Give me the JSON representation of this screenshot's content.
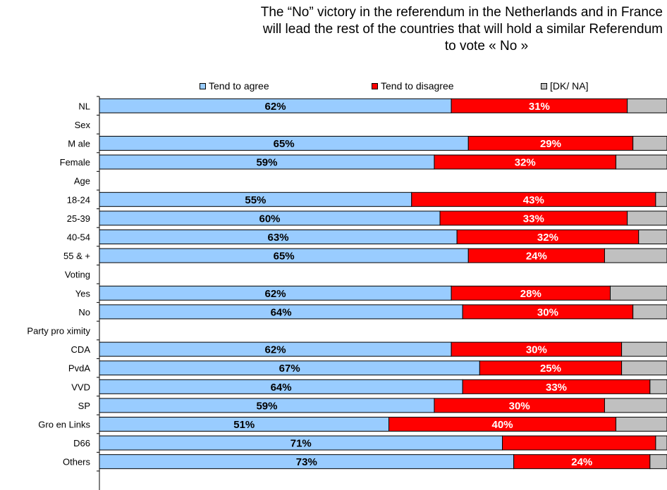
{
  "title": {
    "line1": "The “No” victory in the referendum in the Netherlands and in France",
    "line2": "will lead the rest of the countries that will hold a similar Referendum",
    "line3": "to vote « No »"
  },
  "legend": [
    {
      "name": "Tend to agree",
      "color": "#99ccff"
    },
    {
      "name": "Tend to disagree",
      "color": "#ff0000"
    },
    {
      "name": "[DK/ NA]",
      "color": "#c0c0c0"
    }
  ],
  "chart_data": {
    "type": "bar",
    "orientation": "horizontal",
    "stacked": true,
    "categories": [
      "NL",
      "Sex",
      "M ale",
      "Female",
      "Age",
      "18-24",
      "25-39",
      "40-54",
      "55 & +",
      "Voting",
      "Yes",
      "No",
      "Party pro ximity",
      "CDA",
      "PvdA",
      "VVD",
      "SP",
      "Gro en Links",
      "D66",
      "Others"
    ],
    "series": [
      {
        "name": "Tend to agree",
        "color": "#99ccff",
        "values": [
          62,
          null,
          65,
          59,
          null,
          55,
          60,
          63,
          65,
          null,
          62,
          64,
          null,
          62,
          67,
          64,
          59,
          51,
          71,
          73
        ],
        "labels": [
          "62%",
          "",
          "65%",
          "59%",
          "",
          "55%",
          "60%",
          "63%",
          "65%",
          "",
          "62%",
          "64%",
          "",
          "62%",
          "67%",
          "64%",
          "59%",
          "51%",
          "71%",
          "73%"
        ]
      },
      {
        "name": "Tend to disagree",
        "color": "#ff0000",
        "values": [
          31,
          null,
          29,
          32,
          null,
          43,
          33,
          32,
          24,
          null,
          28,
          30,
          null,
          30,
          25,
          33,
          30,
          40,
          27,
          24
        ],
        "labels": [
          "31%",
          "",
          "29%",
          "32%",
          "",
          "43%",
          "33%",
          "32%",
          "24%",
          "",
          "28%",
          "30%",
          "",
          "30%",
          "25%",
          "33%",
          "30%",
          "40%",
          "",
          "24%"
        ]
      },
      {
        "name": "[DK/ NA]",
        "color": "#c0c0c0",
        "values": [
          7,
          null,
          6,
          9,
          null,
          2,
          7,
          5,
          11,
          null,
          10,
          6,
          null,
          8,
          8,
          3,
          11,
          9,
          2,
          3
        ],
        "labels": [
          "",
          "",
          "",
          "",
          "",
          "",
          "",
          "",
          "",
          "",
          "",
          "",
          "",
          "",
          "",
          "",
          "",
          "",
          "",
          ""
        ]
      }
    ],
    "xlim": [
      0,
      100
    ],
    "legend_position": "top"
  }
}
